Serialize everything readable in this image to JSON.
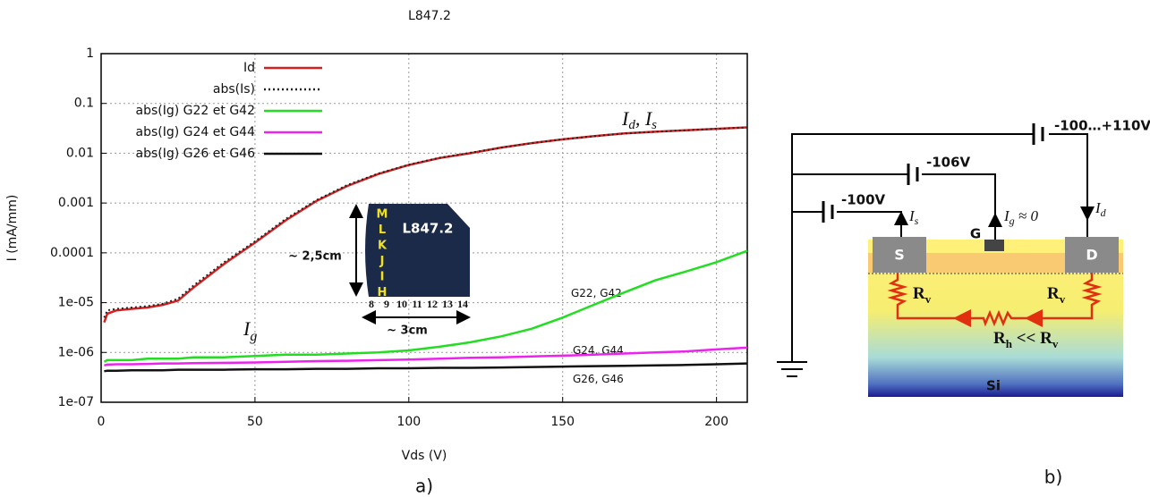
{
  "chart_data": {
    "type": "line",
    "title": "L847.2",
    "xlabel": "Vds (V)",
    "ylabel": "I  (mA/mm)",
    "yscale": "log",
    "grid": true,
    "legend": "upper left",
    "xlim": [
      0,
      210
    ],
    "xticks": [
      0,
      50,
      100,
      150,
      200
    ],
    "ylim": [
      1e-07,
      1
    ],
    "yticks": [
      1,
      0.1,
      0.01,
      0.001,
      0.0001,
      {
        "value": 1e-05,
        "label": "1e-05"
      },
      {
        "value": 1e-06,
        "label": "1e-06"
      },
      {
        "value": 1e-07,
        "label": "1e-07"
      }
    ],
    "x": [
      1,
      2,
      5,
      10,
      15,
      20,
      25,
      30,
      40,
      50,
      60,
      70,
      80,
      90,
      100,
      110,
      120,
      130,
      140,
      150,
      160,
      170,
      180,
      190,
      200,
      210
    ],
    "series": [
      {
        "name": "Id",
        "color": "#d42020",
        "linestyle": "solid",
        "values": [
          4e-06,
          6e-06,
          7e-06,
          7.5e-06,
          8e-06,
          9e-06,
          1.1e-05,
          2e-05,
          6e-05,
          0.00016,
          0.00045,
          0.0011,
          0.0022,
          0.0038,
          0.0058,
          0.008,
          0.01,
          0.013,
          0.016,
          0.019,
          0.022,
          0.025,
          0.027,
          0.029,
          0.031,
          0.033
        ]
      },
      {
        "name": "abs(Is)",
        "color": "#222222",
        "linestyle": "dotted",
        "values": [
          5e-06,
          7e-06,
          7.5e-06,
          8e-06,
          8.5e-06,
          9.5e-06,
          1.2e-05,
          2.2e-05,
          6.5e-05,
          0.00017,
          0.00048,
          0.00115,
          0.0023,
          0.0039,
          0.0059,
          0.0081,
          0.0102,
          0.013,
          0.016,
          0.019,
          0.022,
          0.025,
          0.027,
          0.029,
          0.031,
          0.033
        ]
      },
      {
        "name": "abs(Ig) G22 et G42",
        "color": "#22dd22",
        "linestyle": "solid",
        "values": [
          6.5e-07,
          7e-07,
          7e-07,
          7e-07,
          7.5e-07,
          7.5e-07,
          7.5e-07,
          8e-07,
          8e-07,
          8.5e-07,
          9e-07,
          9e-07,
          9.5e-07,
          1e-06,
          1.1e-06,
          1.3e-06,
          1.6e-06,
          2.1e-06,
          3e-06,
          5e-06,
          9e-06,
          1.6e-05,
          2.8e-05,
          4.2e-05,
          6.5e-05,
          0.00011
        ]
      },
      {
        "name": "abs(Ig) G24 et G44",
        "color": "#ee22ee",
        "linestyle": "solid",
        "values": [
          5.5e-07,
          5.7e-07,
          5.8e-07,
          5.8e-07,
          5.9e-07,
          6e-07,
          6e-07,
          6.1e-07,
          6.2e-07,
          6.3e-07,
          6.5e-07,
          6.7e-07,
          6.8e-07,
          7e-07,
          7.2e-07,
          7.5e-07,
          7.8e-07,
          8e-07,
          8.3e-07,
          8.6e-07,
          9e-07,
          9.5e-07,
          1e-06,
          1.05e-06,
          1.15e-06,
          1.25e-06
        ]
      },
      {
        "name": "abs(Ig) G26 et G46",
        "color": "#111111",
        "linestyle": "solid",
        "values": [
          4.2e-07,
          4.3e-07,
          4.3e-07,
          4.4e-07,
          4.4e-07,
          4.4e-07,
          4.5e-07,
          4.5e-07,
          4.5e-07,
          4.6e-07,
          4.6e-07,
          4.7e-07,
          4.7e-07,
          4.8e-07,
          4.8e-07,
          4.9e-07,
          4.9e-07,
          5e-07,
          5.1e-07,
          5.2e-07,
          5.3e-07,
          5.4e-07,
          5.5e-07,
          5.6e-07,
          5.8e-07,
          6e-07
        ]
      }
    ],
    "annotations": [
      {
        "parts": [
          {
            "text": "I"
          },
          {
            "sub": "d"
          },
          {
            "text": ", I"
          },
          {
            "sub": "s"
          }
        ]
      },
      {
        "parts": [
          {
            "text": "I"
          },
          {
            "sub": "g"
          }
        ]
      },
      {
        "parts": [
          {
            "text": "G22, G42"
          }
        ]
      },
      {
        "parts": [
          {
            "text": "G24, G44"
          }
        ]
      },
      {
        "parts": [
          {
            "text": "G26, G46"
          }
        ]
      }
    ],
    "inset": {
      "label": "L847.2",
      "height": "~ 2,5cm",
      "width": "~ 3cm",
      "rows": [
        "M",
        "L",
        "K",
        "J",
        "I",
        "H"
      ],
      "columns": [
        "8",
        "9",
        "10",
        "11",
        "12",
        "13",
        "14"
      ]
    },
    "caption": "a)"
  },
  "diagram": {
    "caption": "b)",
    "sources": [
      "-100…+110V",
      "-106V",
      "-100V"
    ],
    "currents": [
      {
        "parts": [
          {
            "text": "I"
          },
          {
            "sub": "s"
          }
        ]
      },
      {
        "parts": [
          {
            "text": "I"
          },
          {
            "sub": "g"
          },
          {
            "text": " ≈ 0"
          }
        ]
      },
      {
        "parts": [
          {
            "text": "I"
          },
          {
            "sub": "d"
          }
        ]
      }
    ],
    "terminals": [
      "S",
      "G",
      "D"
    ],
    "resistors": [
      {
        "parts": [
          {
            "text": "R"
          },
          {
            "sub": "v"
          }
        ]
      },
      {
        "parts": [
          {
            "text": "R"
          },
          {
            "sub": "v"
          }
        ]
      },
      {
        "parts": [
          {
            "text": "R"
          },
          {
            "sub": "h"
          },
          {
            "text": " << R"
          },
          {
            "sub": "v"
          }
        ]
      }
    ],
    "substrate": "Si"
  }
}
